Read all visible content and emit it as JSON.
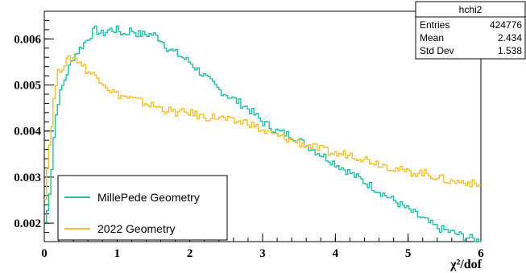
{
  "chart_data": {
    "type": "line",
    "title": "",
    "xlabel": "χ²/dof",
    "ylabel": "",
    "xlim": [
      0,
      6
    ],
    "ylim": [
      0.0016,
      0.0066
    ],
    "x_ticks": [
      "0",
      "1",
      "2",
      "3",
      "4",
      "5",
      "6"
    ],
    "y_ticks": [
      "0.002",
      "0.003",
      "0.004",
      "0.005",
      "0.006"
    ],
    "y_tick_values": [
      0.002,
      0.003,
      0.004,
      0.005,
      0.006
    ],
    "grid": false,
    "legend_position": "bottom-left",
    "stats_box": {
      "name": "hchi2",
      "rows": [
        {
          "label": "Entries",
          "value": "424776"
        },
        {
          "label": "Mean",
          "value": "2.434"
        },
        {
          "label": "Std Dev",
          "value": "1.538"
        }
      ]
    },
    "series": [
      {
        "name": "MillePede Geometry",
        "color": "#1ec0a8",
        "x": [
          0,
          0.05,
          0.1,
          0.15,
          0.2,
          0.3,
          0.4,
          0.5,
          0.6,
          0.7,
          0.8,
          0.9,
          1.0,
          1.1,
          1.2,
          1.3,
          1.4,
          1.5,
          1.6,
          1.7,
          1.8,
          1.9,
          2.0,
          2.2,
          2.4,
          2.6,
          2.8,
          3.0,
          3.2,
          3.4,
          3.6,
          3.8,
          4.0,
          4.2,
          4.4,
          4.6,
          4.8,
          5.0,
          5.2,
          5.4,
          5.6,
          5.8,
          6.0
        ],
        "values": [
          0.0019,
          0.0023,
          0.0031,
          0.0042,
          0.0047,
          0.0052,
          0.0056,
          0.0058,
          0.006,
          0.0062,
          0.0061,
          0.0062,
          0.0062,
          0.0061,
          0.0062,
          0.0061,
          0.0061,
          0.0061,
          0.006,
          0.0058,
          0.0057,
          0.0056,
          0.0055,
          0.0052,
          0.0049,
          0.0047,
          0.0045,
          0.0042,
          0.004,
          0.0039,
          0.0037,
          0.0035,
          0.0033,
          0.0031,
          0.0029,
          0.0027,
          0.0025,
          0.0023,
          0.0021,
          0.0019,
          0.0018,
          0.0017,
          0.0016
        ]
      },
      {
        "name": "2022 Geometry",
        "color": "#f5c023",
        "x": [
          0,
          0.05,
          0.1,
          0.15,
          0.2,
          0.3,
          0.4,
          0.5,
          0.6,
          0.7,
          0.8,
          0.9,
          1.0,
          1.2,
          1.4,
          1.6,
          1.8,
          2.0,
          2.2,
          2.4,
          2.6,
          2.8,
          3.0,
          3.2,
          3.4,
          3.6,
          3.8,
          4.0,
          4.2,
          4.4,
          4.6,
          4.8,
          5.0,
          5.2,
          5.4,
          5.6,
          5.8,
          6.0
        ],
        "values": [
          0.0023,
          0.0033,
          0.0041,
          0.0049,
          0.0053,
          0.0055,
          0.0056,
          0.0055,
          0.0053,
          0.0052,
          0.0051,
          0.0049,
          0.0048,
          0.0047,
          0.0046,
          0.0045,
          0.0044,
          0.0044,
          0.0043,
          0.0043,
          0.0042,
          0.0042,
          0.004,
          0.0039,
          0.0038,
          0.0037,
          0.0036,
          0.0035,
          0.0035,
          0.0034,
          0.0033,
          0.0032,
          0.0031,
          0.0031,
          0.003,
          0.0029,
          0.0029,
          0.0028
        ]
      }
    ]
  }
}
